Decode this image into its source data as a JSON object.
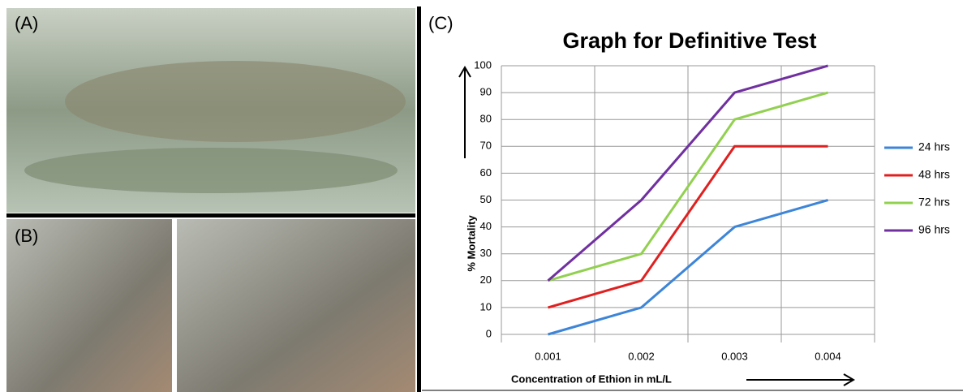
{
  "panels": [
    "(A)",
    "(B)",
    "(C)"
  ],
  "chart_data": {
    "type": "line",
    "title": "Graph for Definitive Test",
    "x_label": "Concentration of Ethion in mL/L",
    "y_label": "% Mortality",
    "categories": [
      "0.001",
      "0.002",
      "0.003",
      "0.004"
    ],
    "series": [
      {
        "name": "24 hrs",
        "color": "#3d85d8",
        "values": [
          0,
          10,
          40,
          50
        ]
      },
      {
        "name": "48 hrs",
        "color": "#e02020",
        "values": [
          10,
          20,
          70,
          70
        ]
      },
      {
        "name": "72 hrs",
        "color": "#92d050",
        "values": [
          20,
          30,
          80,
          90
        ]
      },
      {
        "name": "96 hrs",
        "color": "#7030a0",
        "values": [
          20,
          50,
          90,
          100
        ]
      }
    ],
    "ylim": [
      0,
      100
    ],
    "yticks": [
      0,
      10,
      20,
      30,
      40,
      50,
      60,
      70,
      80,
      90,
      100
    ],
    "grid": true,
    "legend": "right"
  }
}
